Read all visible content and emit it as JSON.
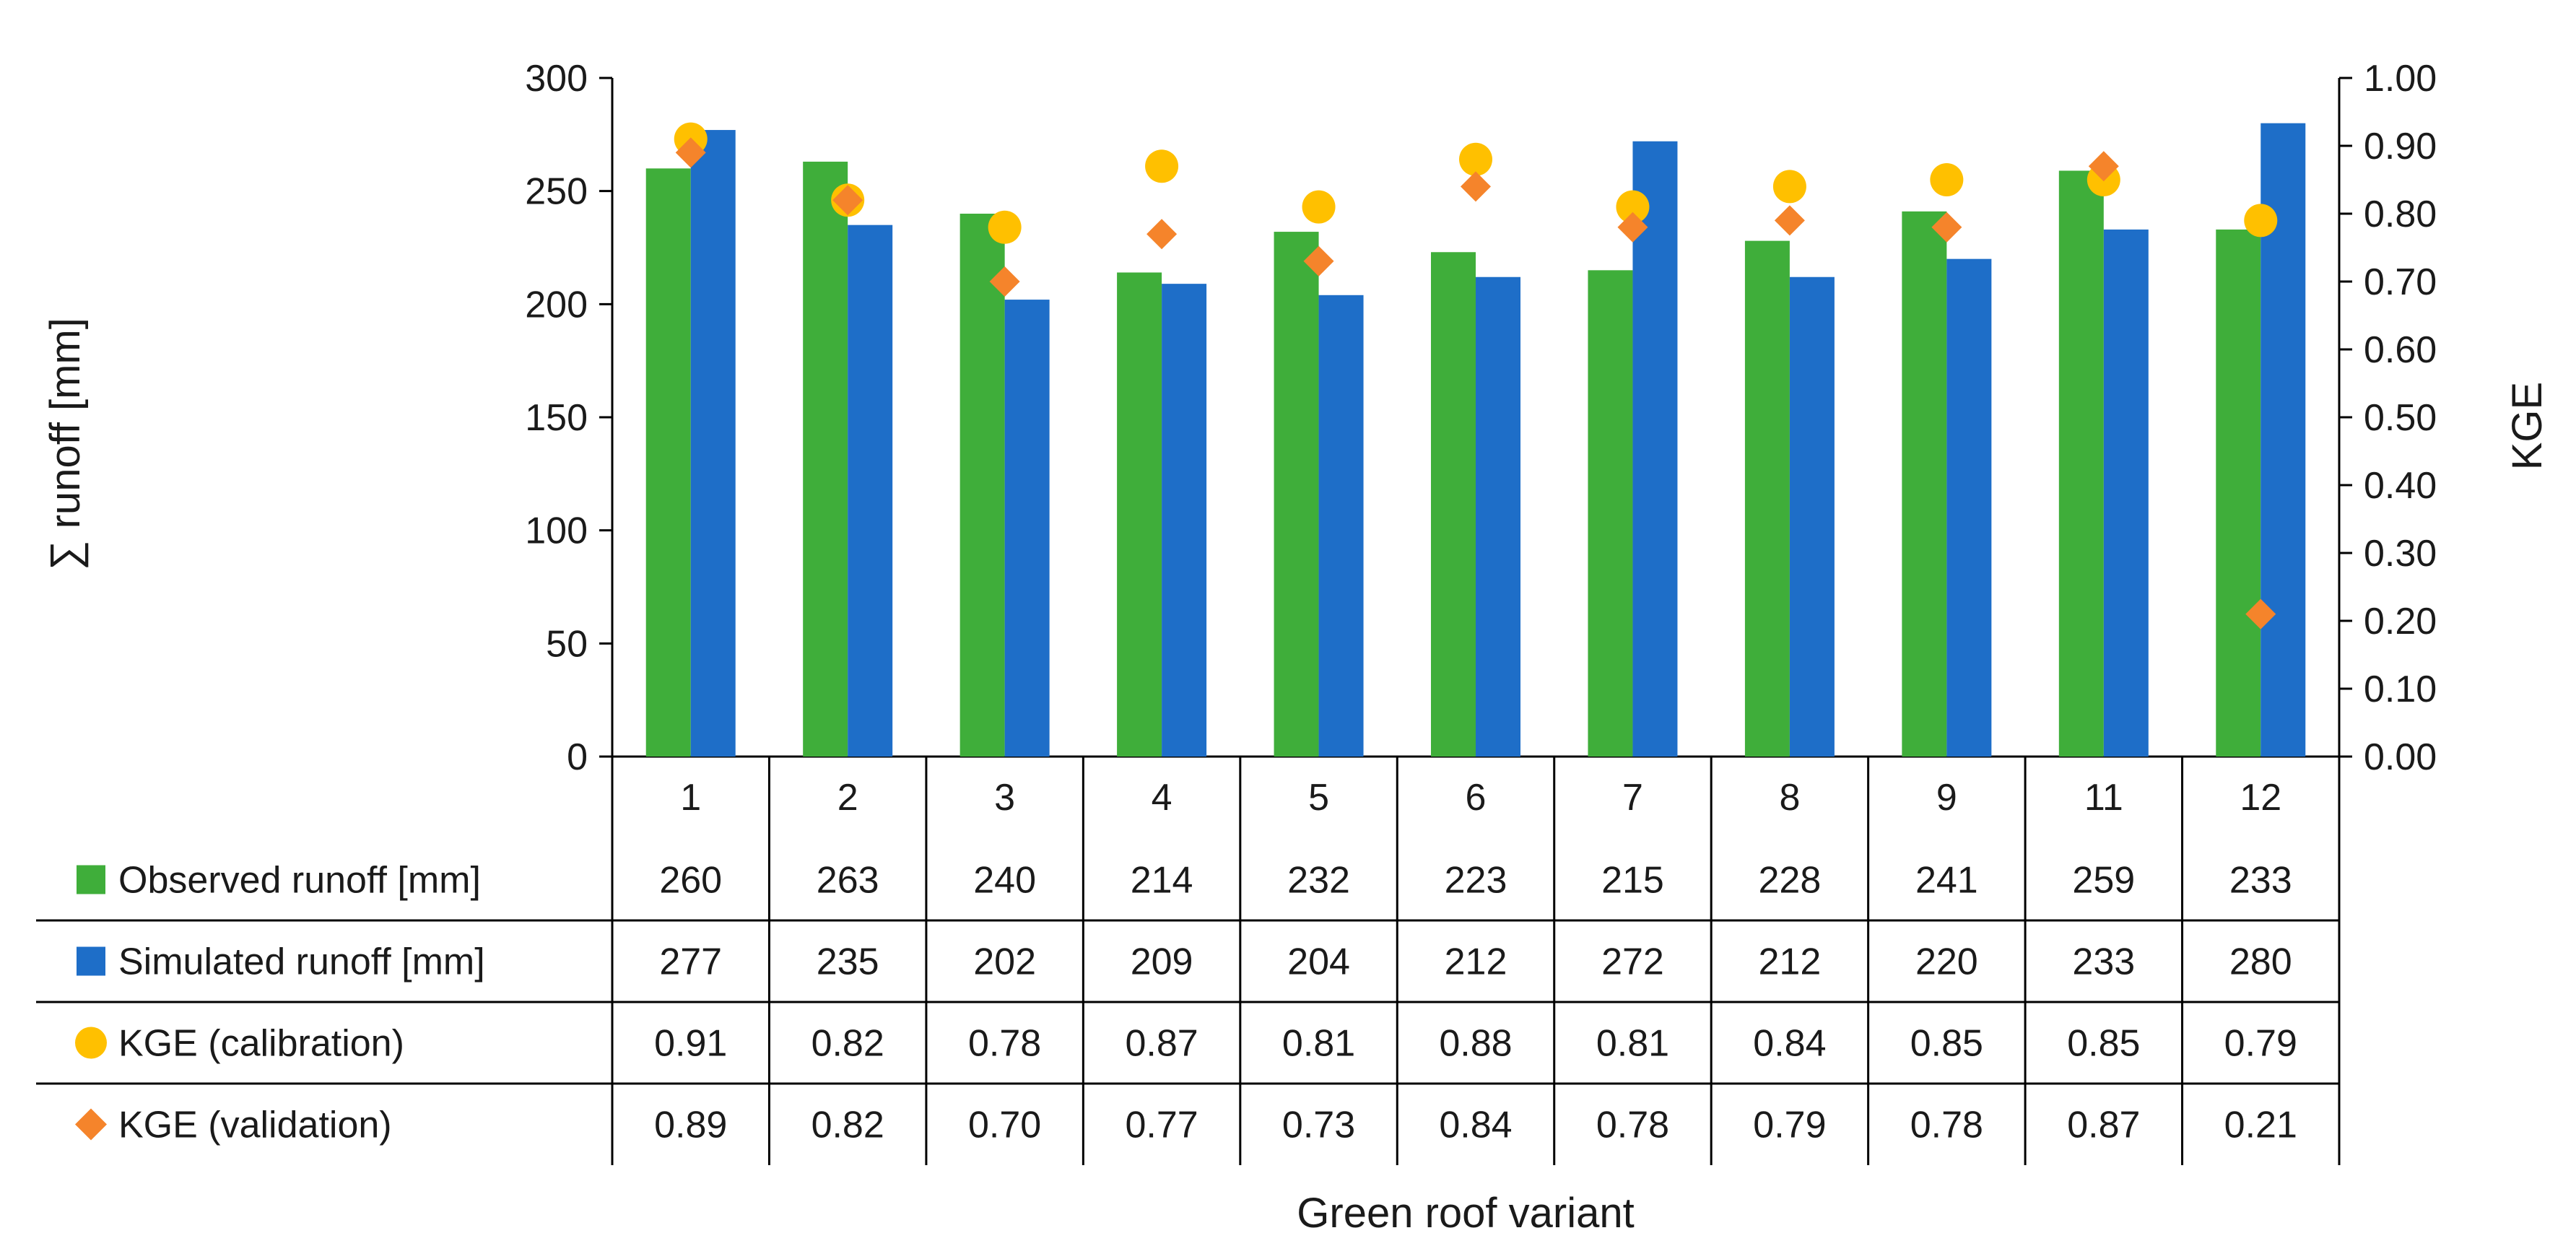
{
  "chart_data": {
    "type": "bar",
    "title": "",
    "xlabel": "Green roof variant",
    "ylabel": "∑ runoff [mm]",
    "y2label": "KGE",
    "ylim": [
      0,
      300
    ],
    "y2lim": [
      0,
      1
    ],
    "yticks": [
      "0",
      "50",
      "100",
      "150",
      "200",
      "250",
      "300"
    ],
    "y2ticks": [
      "0.00",
      "0.10",
      "0.20",
      "0.30",
      "0.40",
      "0.50",
      "0.60",
      "0.70",
      "0.80",
      "0.90",
      "1.00"
    ],
    "categories": [
      "1",
      "2",
      "3",
      "4",
      "5",
      "6",
      "7",
      "8",
      "9",
      "11",
      "12"
    ],
    "series": [
      {
        "name": "Observed runoff [mm]",
        "kind": "bar",
        "axis": "left",
        "color": "#3fae3a",
        "values": [
          260,
          263,
          240,
          214,
          232,
          223,
          215,
          228,
          241,
          259,
          233
        ],
        "labels": [
          "260",
          "263",
          "240",
          "214",
          "232",
          "223",
          "215",
          "228",
          "241",
          "259",
          "233"
        ]
      },
      {
        "name": "Simulated runoff [mm]",
        "kind": "bar",
        "axis": "left",
        "color": "#1e6ec8",
        "values": [
          277,
          235,
          202,
          209,
          204,
          212,
          272,
          212,
          220,
          233,
          280
        ],
        "labels": [
          "277",
          "235",
          "202",
          "209",
          "204",
          "212",
          "272",
          "212",
          "220",
          "233",
          "280"
        ]
      },
      {
        "name": "KGE (calibration)",
        "kind": "circle",
        "axis": "right",
        "color": "#ffc000",
        "values": [
          0.91,
          0.82,
          0.78,
          0.87,
          0.81,
          0.88,
          0.81,
          0.84,
          0.85,
          0.85,
          0.79
        ],
        "labels": [
          "0.91",
          "0.82",
          "0.78",
          "0.87",
          "0.81",
          "0.88",
          "0.81",
          "0.84",
          "0.85",
          "0.85",
          "0.79"
        ]
      },
      {
        "name": "KGE (validation)",
        "kind": "diamond",
        "axis": "right",
        "color": "#f5842b",
        "values": [
          0.89,
          0.82,
          0.7,
          0.77,
          0.73,
          0.84,
          0.78,
          0.79,
          0.78,
          0.87,
          0.21
        ],
        "labels": [
          "0.89",
          "0.82",
          "0.70",
          "0.77",
          "0.73",
          "0.84",
          "0.78",
          "0.79",
          "0.78",
          "0.87",
          "0.21"
        ]
      }
    ]
  }
}
